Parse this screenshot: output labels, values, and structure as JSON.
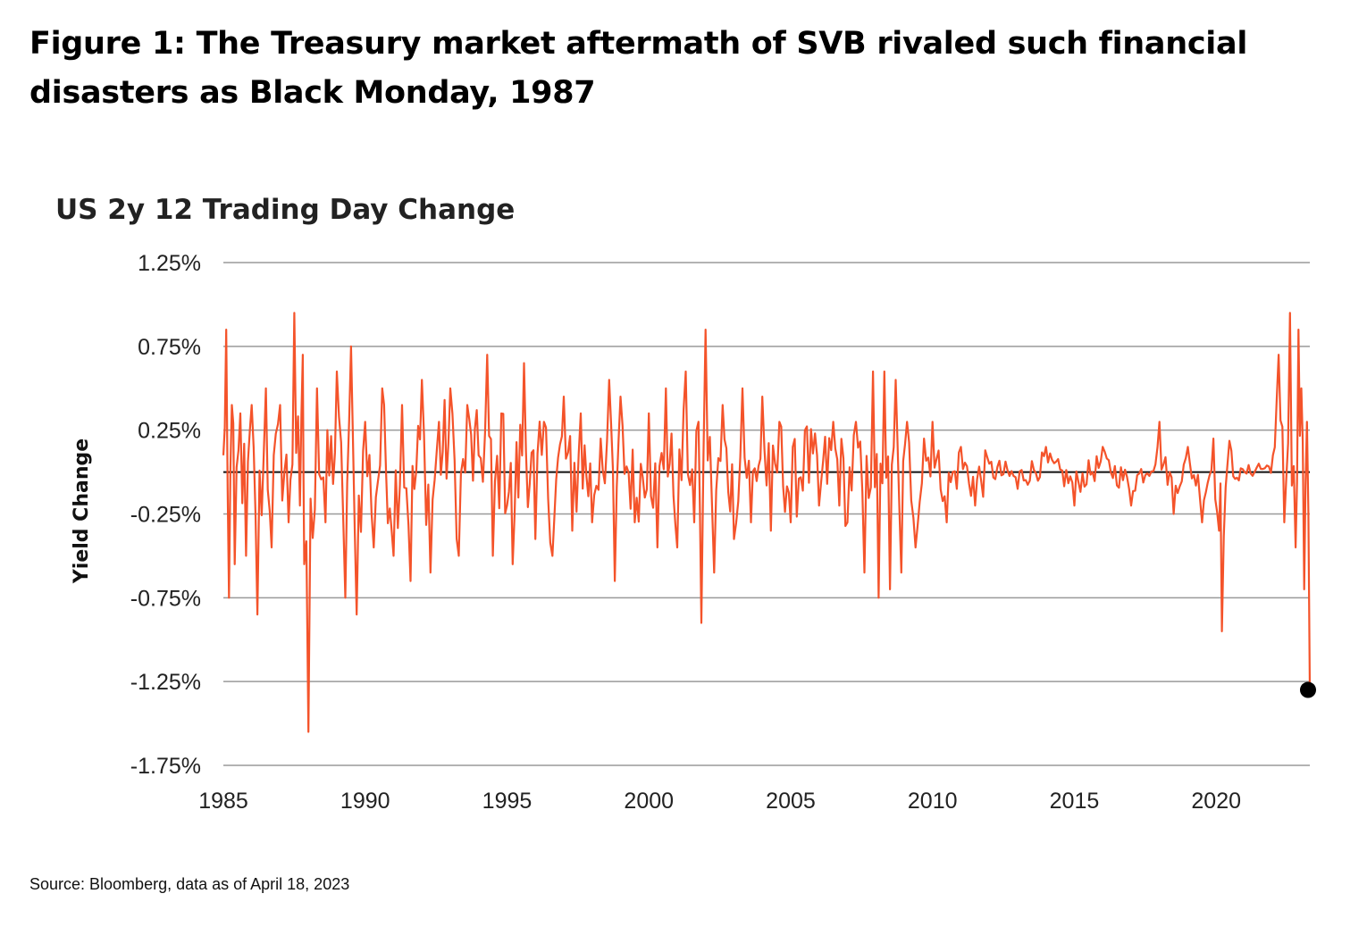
{
  "figure": {
    "title": "Figure 1: The Treasury market aftermath of SVB rivaled such financial disasters as Black Monday, 1987",
    "source": "Source: Bloomberg, data as of April 18, 2023"
  },
  "colors": {
    "series": "#f4532a",
    "grid": "#9a9a9a",
    "zero_line": "#111111",
    "marker": "#000000"
  },
  "chart_data": {
    "type": "line",
    "title": "US 2y 12 Trading Day Change",
    "xlabel": "",
    "ylabel": "Yield Change",
    "xlim": [
      1985,
      2023.3
    ],
    "ylim": [
      -1.75,
      1.25
    ],
    "x_ticks": [
      1985,
      1990,
      1995,
      2000,
      2005,
      2010,
      2015,
      2020
    ],
    "x_tick_labels": [
      "1985",
      "1990",
      "1995",
      "2000",
      "2005",
      "2010",
      "2015",
      "2020"
    ],
    "y_ticks": [
      1.25,
      0.75,
      0.25,
      -0.25,
      -0.75,
      -1.25,
      -1.75
    ],
    "y_tick_labels": [
      "1.25%",
      "0.75%",
      "0.25%",
      "-0.25%",
      "-0.75%",
      "-1.25%",
      "-1.75%"
    ],
    "grid": "horizontal",
    "series": [
      {
        "name": "US 2y 12 Trading Day Change",
        "x": [
          1985.0,
          1985.1,
          1985.2,
          1985.3,
          1985.4,
          1985.6,
          1985.8,
          1986.0,
          1986.2,
          1986.5,
          1986.7,
          1987.0,
          1987.3,
          1987.5,
          1987.7,
          1987.8,
          1987.85,
          1988.0,
          1988.3,
          1988.6,
          1989.0,
          1989.3,
          1989.5,
          1989.7,
          1990.0,
          1990.3,
          1990.6,
          1991.0,
          1991.3,
          1991.6,
          1992.0,
          1992.3,
          1992.6,
          1993.0,
          1993.3,
          1993.6,
          1994.0,
          1994.3,
          1994.5,
          1994.8,
          1995.2,
          1995.6,
          1996.0,
          1996.3,
          1996.6,
          1997.0,
          1997.3,
          1997.6,
          1998.0,
          1998.3,
          1998.6,
          1998.8,
          1999.0,
          1999.5,
          2000.0,
          2000.3,
          2000.6,
          2001.0,
          2001.3,
          2001.6,
          2001.75,
          2001.85,
          2002.0,
          2002.3,
          2002.6,
          2003.0,
          2003.3,
          2003.6,
          2004.0,
          2004.3,
          2004.6,
          2005.0,
          2005.5,
          2006.0,
          2006.5,
          2007.0,
          2007.3,
          2007.6,
          2007.9,
          2008.1,
          2008.3,
          2008.5,
          2008.7,
          2008.9,
          2009.1,
          2009.4,
          2009.7,
          2010.0,
          2010.5,
          2011.0,
          2011.5,
          2012.0,
          2013.0,
          2014.0,
          2015.0,
          2016.0,
          2017.0,
          2018.0,
          2018.5,
          2019.0,
          2019.5,
          2019.9,
          2020.1,
          2020.2,
          2020.4,
          2020.8,
          2021.0,
          2021.5,
          2022.0,
          2022.2,
          2022.4,
          2022.6,
          2022.8,
          2022.9,
          2023.0,
          2023.1,
          2023.2,
          2023.3
        ],
        "values": [
          0.1,
          0.85,
          -0.75,
          0.4,
          -0.55,
          0.35,
          -0.5,
          0.4,
          -0.85,
          0.5,
          -0.45,
          0.4,
          -0.3,
          0.95,
          -0.2,
          0.7,
          -0.55,
          -1.55,
          0.5,
          -0.3,
          0.6,
          -0.75,
          0.75,
          -0.85,
          0.3,
          -0.45,
          0.5,
          -0.5,
          0.4,
          -0.65,
          0.55,
          -0.6,
          0.3,
          0.5,
          -0.5,
          0.4,
          0.1,
          0.7,
          -0.5,
          0.35,
          -0.55,
          0.65,
          -0.4,
          0.3,
          -0.5,
          0.45,
          -0.35,
          0.35,
          -0.3,
          0.2,
          0.55,
          -0.65,
          0.45,
          -0.3,
          0.35,
          -0.45,
          0.5,
          -0.45,
          0.6,
          -0.3,
          0.3,
          -0.9,
          0.85,
          -0.6,
          0.4,
          -0.4,
          0.5,
          -0.3,
          0.45,
          -0.35,
          0.3,
          -0.3,
          0.25,
          -0.2,
          0.3,
          -0.3,
          0.3,
          -0.6,
          0.6,
          -0.75,
          0.6,
          -0.7,
          0.55,
          -0.6,
          0.3,
          -0.45,
          0.2,
          0.3,
          -0.3,
          0.15,
          -0.2,
          0.05,
          -0.1,
          0.15,
          -0.2,
          0.15,
          -0.2,
          0.3,
          -0.25,
          0.15,
          -0.3,
          0.2,
          -0.35,
          -0.95,
          0.05,
          -0.05,
          0.0,
          0.05,
          0.1,
          0.7,
          -0.3,
          0.95,
          -0.45,
          0.85,
          0.5,
          -0.7,
          0.3,
          -1.3
        ]
      }
    ],
    "annotations": [
      {
        "type": "point",
        "x": 2023.3,
        "y": -1.3,
        "label": ""
      }
    ]
  }
}
